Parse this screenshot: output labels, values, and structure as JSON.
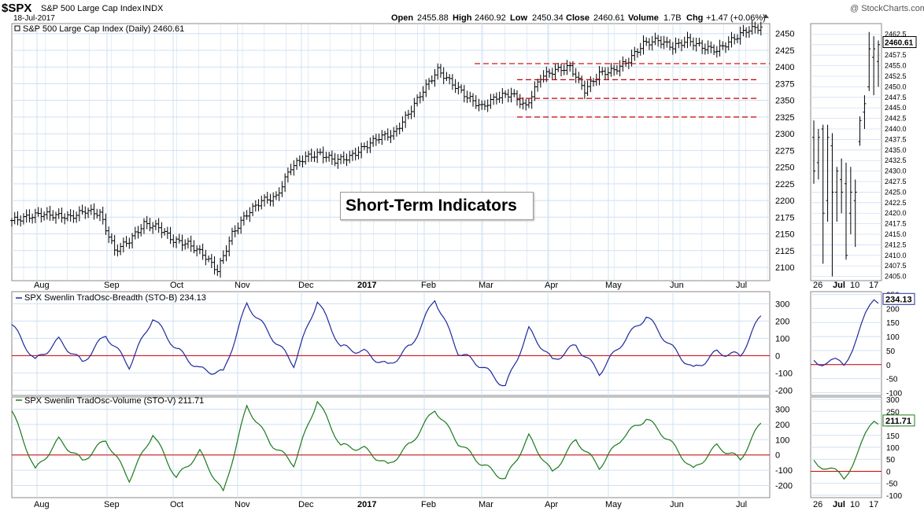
{
  "header": {
    "symbol": "$SPX",
    "name": "S&P 500 Large Cap Index",
    "exchange": "INDX",
    "date": "18-Jul-2017",
    "credit": "@ StockCharts.com",
    "open_label": "Open",
    "open": "2455.88",
    "high_label": "High",
    "high": "2460.92",
    "low_label": "Low",
    "low": "2450.34",
    "close_label": "Close",
    "close": "2460.61",
    "volume_label": "Volume",
    "volume": "1.7B",
    "chg_label": "Chg",
    "chg": "+1.47 (+0.06%)"
  },
  "annotation": {
    "text": "Short-Term Indicators"
  },
  "colors": {
    "grid": "#cfe0f2",
    "bars": "#000000",
    "support": "#cc0000",
    "breadth": "#1f2a9c",
    "volume": "#1c7a1c",
    "zero": "#cc0000",
    "pane_bg": "#ffffff"
  },
  "chart_data": [
    {
      "type": "ohlc",
      "title": "S&P 500 Large Cap Index (Daily) 2460.61",
      "months": [
        "Aug",
        "Sep",
        "Oct",
        "Nov",
        "Dec",
        "2017",
        "Feb",
        "Mar",
        "Apr",
        "May",
        "Jun",
        "Jul"
      ],
      "y_ticks": [
        2100,
        2125,
        2150,
        2175,
        2200,
        2225,
        2250,
        2275,
        2300,
        2325,
        2350,
        2375,
        2400,
        2425,
        2450
      ],
      "ylim": [
        2080,
        2465
      ],
      "series": [
        {
          "name": "close",
          "x": [
            0,
            10,
            20,
            25,
            30,
            35,
            40,
            45,
            50,
            55,
            60,
            65,
            70,
            75,
            80,
            85,
            90,
            95,
            100,
            105,
            110,
            115,
            120,
            125,
            130,
            135,
            140,
            145,
            150,
            155,
            160,
            165,
            170,
            175,
            180,
            185,
            190,
            195,
            200,
            205,
            210,
            215,
            220,
            225,
            230,
            235,
            240,
            245,
            250,
            255
          ],
          "y": [
            2170,
            2180,
            2175,
            2185,
            2180,
            2125,
            2140,
            2165,
            2160,
            2140,
            2135,
            2120,
            2095,
            2150,
            2180,
            2200,
            2205,
            2250,
            2265,
            2270,
            2260,
            2265,
            2280,
            2295,
            2300,
            2330,
            2365,
            2395,
            2375,
            2355,
            2340,
            2355,
            2360,
            2340,
            2385,
            2395,
            2400,
            2365,
            2390,
            2395,
            2410,
            2435,
            2440,
            2430,
            2440,
            2430,
            2425,
            2440,
            2455,
            2460
          ]
        }
      ],
      "support_lines": [
        2405,
        2381,
        2353,
        2325
      ]
    },
    {
      "type": "line",
      "title": "SPX Swenlin TradOsc-Breadth (STO-B) 234.13",
      "current": "234.13",
      "y_ticks": [
        300,
        200,
        100,
        0,
        -100,
        -200
      ],
      "inset_ticks": [
        250,
        200,
        150,
        100,
        50,
        0,
        -50,
        -100
      ],
      "ylim": [
        -230,
        370
      ],
      "series": [
        {
          "name": "STO-B",
          "x": [
            0,
            8,
            16,
            24,
            32,
            40,
            48,
            56,
            64,
            72,
            80,
            88,
            96,
            104,
            112,
            120,
            128,
            136,
            144,
            152,
            160,
            168,
            176,
            184,
            192,
            200,
            208,
            216,
            224,
            232,
            240,
            248,
            255
          ],
          "y": [
            180,
            -30,
            90,
            -40,
            120,
            -60,
            220,
            40,
            -80,
            -100,
            300,
            120,
            -50,
            320,
            50,
            20,
            -60,
            60,
            330,
            20,
            -60,
            -180,
            150,
            -30,
            60,
            -100,
            80,
            230,
            60,
            -80,
            20,
            0,
            234
          ]
        }
      ]
    },
    {
      "type": "line",
      "title": "SPX Swenlin TradOsc-Volume (STO-V) 211.71",
      "current": "211.71",
      "y_ticks": [
        300,
        200,
        100,
        0,
        -100,
        -200
      ],
      "inset_ticks": [
        300,
        250,
        200,
        150,
        100,
        50,
        0,
        -50,
        -100
      ],
      "ylim": [
        -280,
        380
      ],
      "series": [
        {
          "name": "STO-V",
          "x": [
            0,
            8,
            16,
            24,
            32,
            40,
            48,
            56,
            64,
            72,
            80,
            88,
            96,
            104,
            112,
            120,
            128,
            136,
            144,
            152,
            160,
            168,
            176,
            184,
            192,
            200,
            208,
            216,
            224,
            232,
            240,
            248,
            255
          ],
          "y": [
            290,
            -100,
            100,
            -40,
            100,
            -160,
            140,
            -150,
            20,
            -250,
            320,
            80,
            -60,
            360,
            60,
            40,
            -70,
            80,
            300,
            80,
            -60,
            -160,
            120,
            -120,
            100,
            -80,
            120,
            240,
            90,
            -100,
            60,
            -30,
            212
          ]
        }
      ]
    }
  ],
  "inset": {
    "labels": [
      "26",
      "Jul",
      "10",
      "17"
    ],
    "price_ticks": [
      "2462.5",
      "2460.0",
      "2457.5",
      "2455.0",
      "2452.5",
      "2450.0",
      "2447.5",
      "2445.0",
      "2442.5",
      "2440.0",
      "2437.5",
      "2435.0",
      "2432.5",
      "2430.0",
      "2427.5",
      "2425.0",
      "2422.5",
      "2420.0",
      "2417.5",
      "2415.0",
      "2412.5",
      "2410.0",
      "2407.5",
      "2405.0"
    ],
    "price_current": "2460.61",
    "price_ylim": [
      2404,
      2465
    ],
    "bars": [
      {
        "x": 0,
        "o": 2438,
        "h": 2442,
        "l": 2427,
        "c": 2430
      },
      {
        "x": 1,
        "o": 2432,
        "h": 2440,
        "l": 2428,
        "c": 2438
      },
      {
        "x": 2,
        "o": 2440,
        "h": 2441,
        "l": 2408,
        "c": 2420
      },
      {
        "x": 3,
        "o": 2423,
        "h": 2441,
        "l": 2418,
        "c": 2438
      },
      {
        "x": 4,
        "o": 2436,
        "h": 2439,
        "l": 2405,
        "c": 2425
      },
      {
        "x": 5,
        "o": 2425,
        "h": 2431,
        "l": 2418,
        "c": 2430
      },
      {
        "x": 6,
        "o": 2428,
        "h": 2433,
        "l": 2420,
        "c": 2425
      },
      {
        "x": 7,
        "o": 2427,
        "h": 2432,
        "l": 2409,
        "c": 2410
      },
      {
        "x": 8,
        "o": 2420,
        "h": 2431,
        "l": 2415,
        "c": 2425
      },
      {
        "x": 9,
        "o": 2423,
        "h": 2428,
        "l": 2412,
        "c": 2425
      },
      {
        "x": 10,
        "o": 2437,
        "h": 2443,
        "l": 2436,
        "c": 2442
      },
      {
        "x": 11,
        "o": 2444,
        "h": 2448,
        "l": 2440,
        "c": 2446
      },
      {
        "x": 12,
        "o": 2450,
        "h": 2463,
        "l": 2449,
        "c": 2459
      },
      {
        "x": 13,
        "o": 2457,
        "h": 2462,
        "l": 2448,
        "c": 2459
      },
      {
        "x": 14,
        "o": 2456,
        "h": 2461,
        "l": 2450,
        "c": 2460
      }
    ]
  }
}
